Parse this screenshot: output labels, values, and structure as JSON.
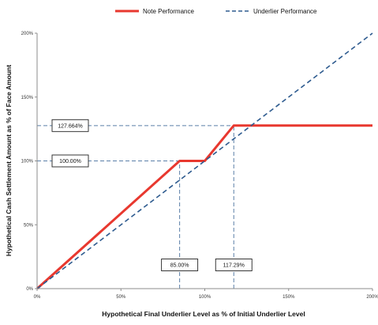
{
  "chart_data": {
    "type": "line",
    "xlabel": "Hypothetical Final Underlier Level as % of Initial Underlier Level",
    "ylabel": "Hypothetical Cash Settlement Amount as % of Face Amount",
    "xlim": [
      0,
      200
    ],
    "ylim": [
      0,
      200
    ],
    "x_ticks": [
      0,
      50,
      100,
      150,
      200
    ],
    "y_ticks": [
      0,
      50,
      100,
      150,
      200
    ],
    "x_tick_labels": [
      "0%",
      "50%",
      "100%",
      "150%",
      "200%"
    ],
    "y_tick_labels": [
      "0%",
      "50%",
      "100%",
      "150%",
      "200%"
    ],
    "legend_position": "top",
    "grid": false,
    "series": [
      {
        "name": "Note Performance",
        "color": "#e8382f",
        "style": "solid",
        "points": [
          [
            0,
            0
          ],
          [
            85,
            100
          ],
          [
            100,
            100
          ],
          [
            117.29,
            127.664
          ],
          [
            200,
            127.664
          ]
        ]
      },
      {
        "name": "Underlier Performance",
        "color": "#2e5b8f",
        "style": "dashed",
        "points": [
          [
            0,
            0
          ],
          [
            200,
            200
          ]
        ]
      }
    ],
    "reference_lines": [
      {
        "orientation": "horizontal",
        "value": 127.664,
        "from": 0,
        "to": 117.29
      },
      {
        "orientation": "horizontal",
        "value": 100,
        "from": 0,
        "to": 85
      },
      {
        "orientation": "vertical",
        "value": 85,
        "from": 0,
        "to": 100
      },
      {
        "orientation": "vertical",
        "value": 117.29,
        "from": 0,
        "to": 127.664
      }
    ],
    "annotations": [
      {
        "text": "127.664%",
        "axis": "y",
        "value": 127.664
      },
      {
        "text": "100.00%",
        "axis": "y",
        "value": 100
      },
      {
        "text": "85.00%",
        "axis": "x",
        "value": 85
      },
      {
        "text": "117.29%",
        "axis": "x",
        "value": 117.29
      }
    ]
  }
}
